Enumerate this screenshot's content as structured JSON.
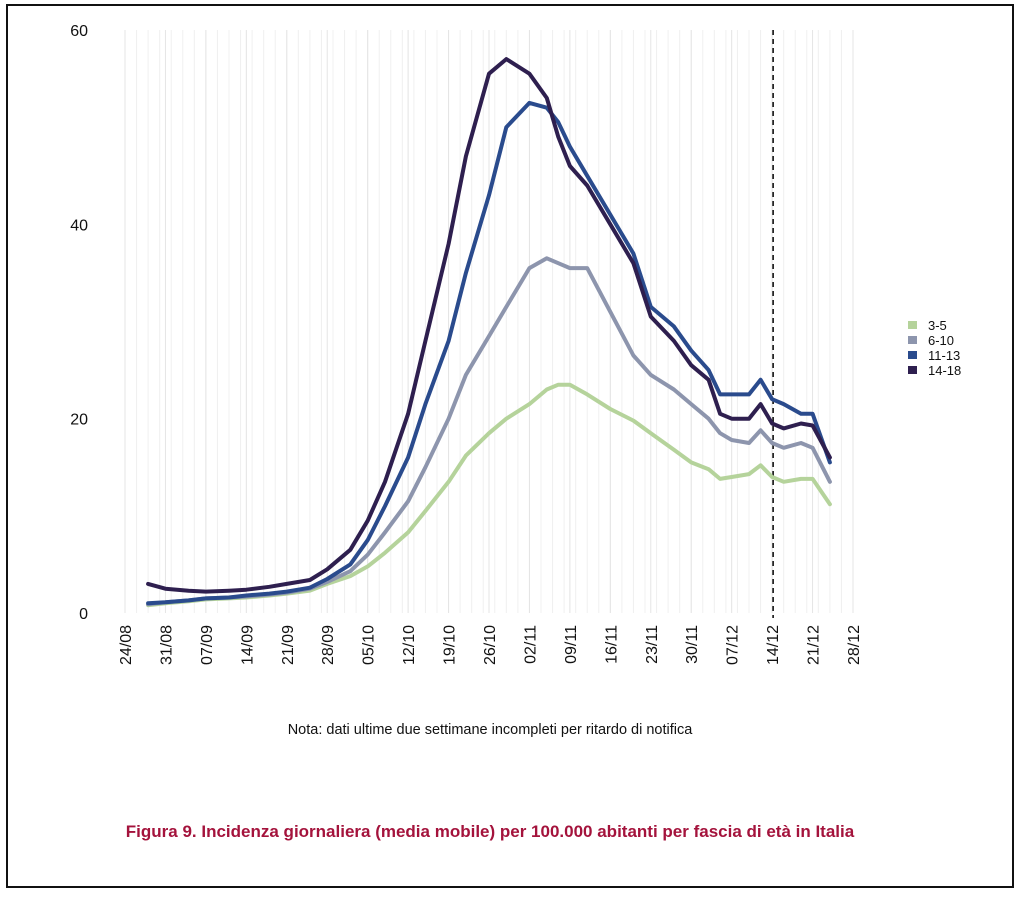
{
  "note": "Nota: dati ultime due settimane incompleti per ritardo di notifica",
  "caption": "Figura 9. Incidenza giornaliera (media mobile) per 100.000 abitanti per fascia di età in Italia",
  "chart_data": {
    "type": "line",
    "title": "",
    "xlabel": "",
    "ylabel": "",
    "ylim": [
      0,
      60
    ],
    "y_ticks": [
      0,
      20,
      40,
      60
    ],
    "grid": "vertical",
    "legend_position": "right",
    "x_tick_labels": [
      "24/08",
      "31/08",
      "07/09",
      "14/09",
      "21/09",
      "28/09",
      "05/10",
      "12/10",
      "19/10",
      "26/10",
      "02/11",
      "09/11",
      "16/11",
      "23/11",
      "30/11",
      "07/12",
      "14/12",
      "21/12",
      "28/12"
    ],
    "vline": {
      "date": "14/12",
      "style": "dashed"
    },
    "series": [
      {
        "name": "3-5",
        "color": "#b5d39b",
        "x": [
          "28/08",
          "31/08",
          "04/09",
          "07/09",
          "11/09",
          "14/09",
          "18/09",
          "21/09",
          "25/09",
          "28/09",
          "02/10",
          "05/10",
          "08/10",
          "12/10",
          "15/10",
          "19/10",
          "22/10",
          "26/10",
          "29/10",
          "02/11",
          "05/11",
          "07/11",
          "09/11",
          "12/11",
          "16/11",
          "20/11",
          "23/11",
          "27/11",
          "30/11",
          "03/12",
          "05/12",
          "07/12",
          "10/12",
          "12/12",
          "14/12",
          "16/12",
          "19/12",
          "21/12",
          "24/12"
        ],
        "y": [
          0.8,
          1.0,
          1.2,
          1.4,
          1.5,
          1.6,
          1.8,
          2.0,
          2.3,
          3.0,
          3.8,
          4.8,
          6.2,
          8.3,
          10.5,
          13.5,
          16.2,
          18.5,
          20.0,
          21.5,
          23.0,
          23.5,
          23.5,
          22.5,
          21.0,
          19.8,
          18.5,
          16.8,
          15.5,
          14.8,
          13.8,
          14.0,
          14.3,
          15.2,
          14.0,
          13.5,
          13.8,
          13.8,
          11.2
        ]
      },
      {
        "name": "6-10",
        "color": "#8d95ad",
        "x": [
          "28/08",
          "31/08",
          "04/09",
          "07/09",
          "11/09",
          "14/09",
          "18/09",
          "21/09",
          "25/09",
          "28/09",
          "02/10",
          "05/10",
          "08/10",
          "12/10",
          "15/10",
          "19/10",
          "22/10",
          "26/10",
          "29/10",
          "02/11",
          "05/11",
          "07/11",
          "09/11",
          "12/11",
          "16/11",
          "20/11",
          "23/11",
          "27/11",
          "30/11",
          "03/12",
          "05/12",
          "07/12",
          "10/12",
          "12/12",
          "14/12",
          "16/12",
          "19/12",
          "21/12",
          "24/12"
        ],
        "y": [
          0.9,
          1.1,
          1.3,
          1.5,
          1.6,
          1.7,
          1.9,
          2.1,
          2.5,
          3.2,
          4.3,
          6.0,
          8.3,
          11.5,
          15.0,
          20.0,
          24.5,
          28.5,
          31.5,
          35.5,
          36.5,
          36.0,
          35.5,
          35.5,
          31.0,
          26.5,
          24.5,
          23.0,
          21.5,
          20.0,
          18.5,
          17.8,
          17.5,
          18.8,
          17.5,
          17.0,
          17.5,
          17.0,
          13.5
        ]
      },
      {
        "name": "11-13",
        "color": "#2a4b8d",
        "x": [
          "28/08",
          "31/08",
          "04/09",
          "07/09",
          "11/09",
          "14/09",
          "18/09",
          "21/09",
          "25/09",
          "28/09",
          "02/10",
          "05/10",
          "08/10",
          "12/10",
          "15/10",
          "19/10",
          "22/10",
          "26/10",
          "29/10",
          "02/11",
          "05/11",
          "07/11",
          "09/11",
          "12/11",
          "16/11",
          "20/11",
          "23/11",
          "27/11",
          "30/11",
          "03/12",
          "05/12",
          "07/12",
          "10/12",
          "12/12",
          "14/12",
          "16/12",
          "19/12",
          "21/12",
          "24/12"
        ],
        "y": [
          1.0,
          1.1,
          1.3,
          1.5,
          1.6,
          1.8,
          2.0,
          2.2,
          2.6,
          3.5,
          5.0,
          7.5,
          11.0,
          16.0,
          21.5,
          28.0,
          35.0,
          43.0,
          50.0,
          52.5,
          52.0,
          50.5,
          48.0,
          45.0,
          41.0,
          37.0,
          31.5,
          29.5,
          27.0,
          25.0,
          22.5,
          22.5,
          22.5,
          24.0,
          22.0,
          21.5,
          20.5,
          20.5,
          15.5
        ]
      },
      {
        "name": "14-18",
        "color": "#2e1f4f",
        "x": [
          "28/08",
          "31/08",
          "04/09",
          "07/09",
          "11/09",
          "14/09",
          "18/09",
          "21/09",
          "25/09",
          "28/09",
          "02/10",
          "05/10",
          "08/10",
          "12/10",
          "15/10",
          "19/10",
          "22/10",
          "26/10",
          "29/10",
          "02/11",
          "05/11",
          "07/11",
          "09/11",
          "12/11",
          "16/11",
          "20/11",
          "23/11",
          "27/11",
          "30/11",
          "03/12",
          "05/12",
          "07/12",
          "10/12",
          "12/12",
          "14/12",
          "16/12",
          "19/12",
          "21/12",
          "24/12"
        ],
        "y": [
          3.0,
          2.5,
          2.3,
          2.2,
          2.3,
          2.4,
          2.7,
          3.0,
          3.4,
          4.5,
          6.5,
          9.5,
          13.5,
          20.5,
          28.0,
          38.0,
          47.0,
          55.5,
          57.0,
          55.5,
          53.0,
          49.0,
          46.0,
          44.0,
          40.0,
          36.0,
          30.5,
          28.0,
          25.5,
          24.0,
          20.5,
          20.0,
          20.0,
          21.5,
          19.5,
          19.0,
          19.5,
          19.3,
          16.0
        ]
      }
    ]
  }
}
